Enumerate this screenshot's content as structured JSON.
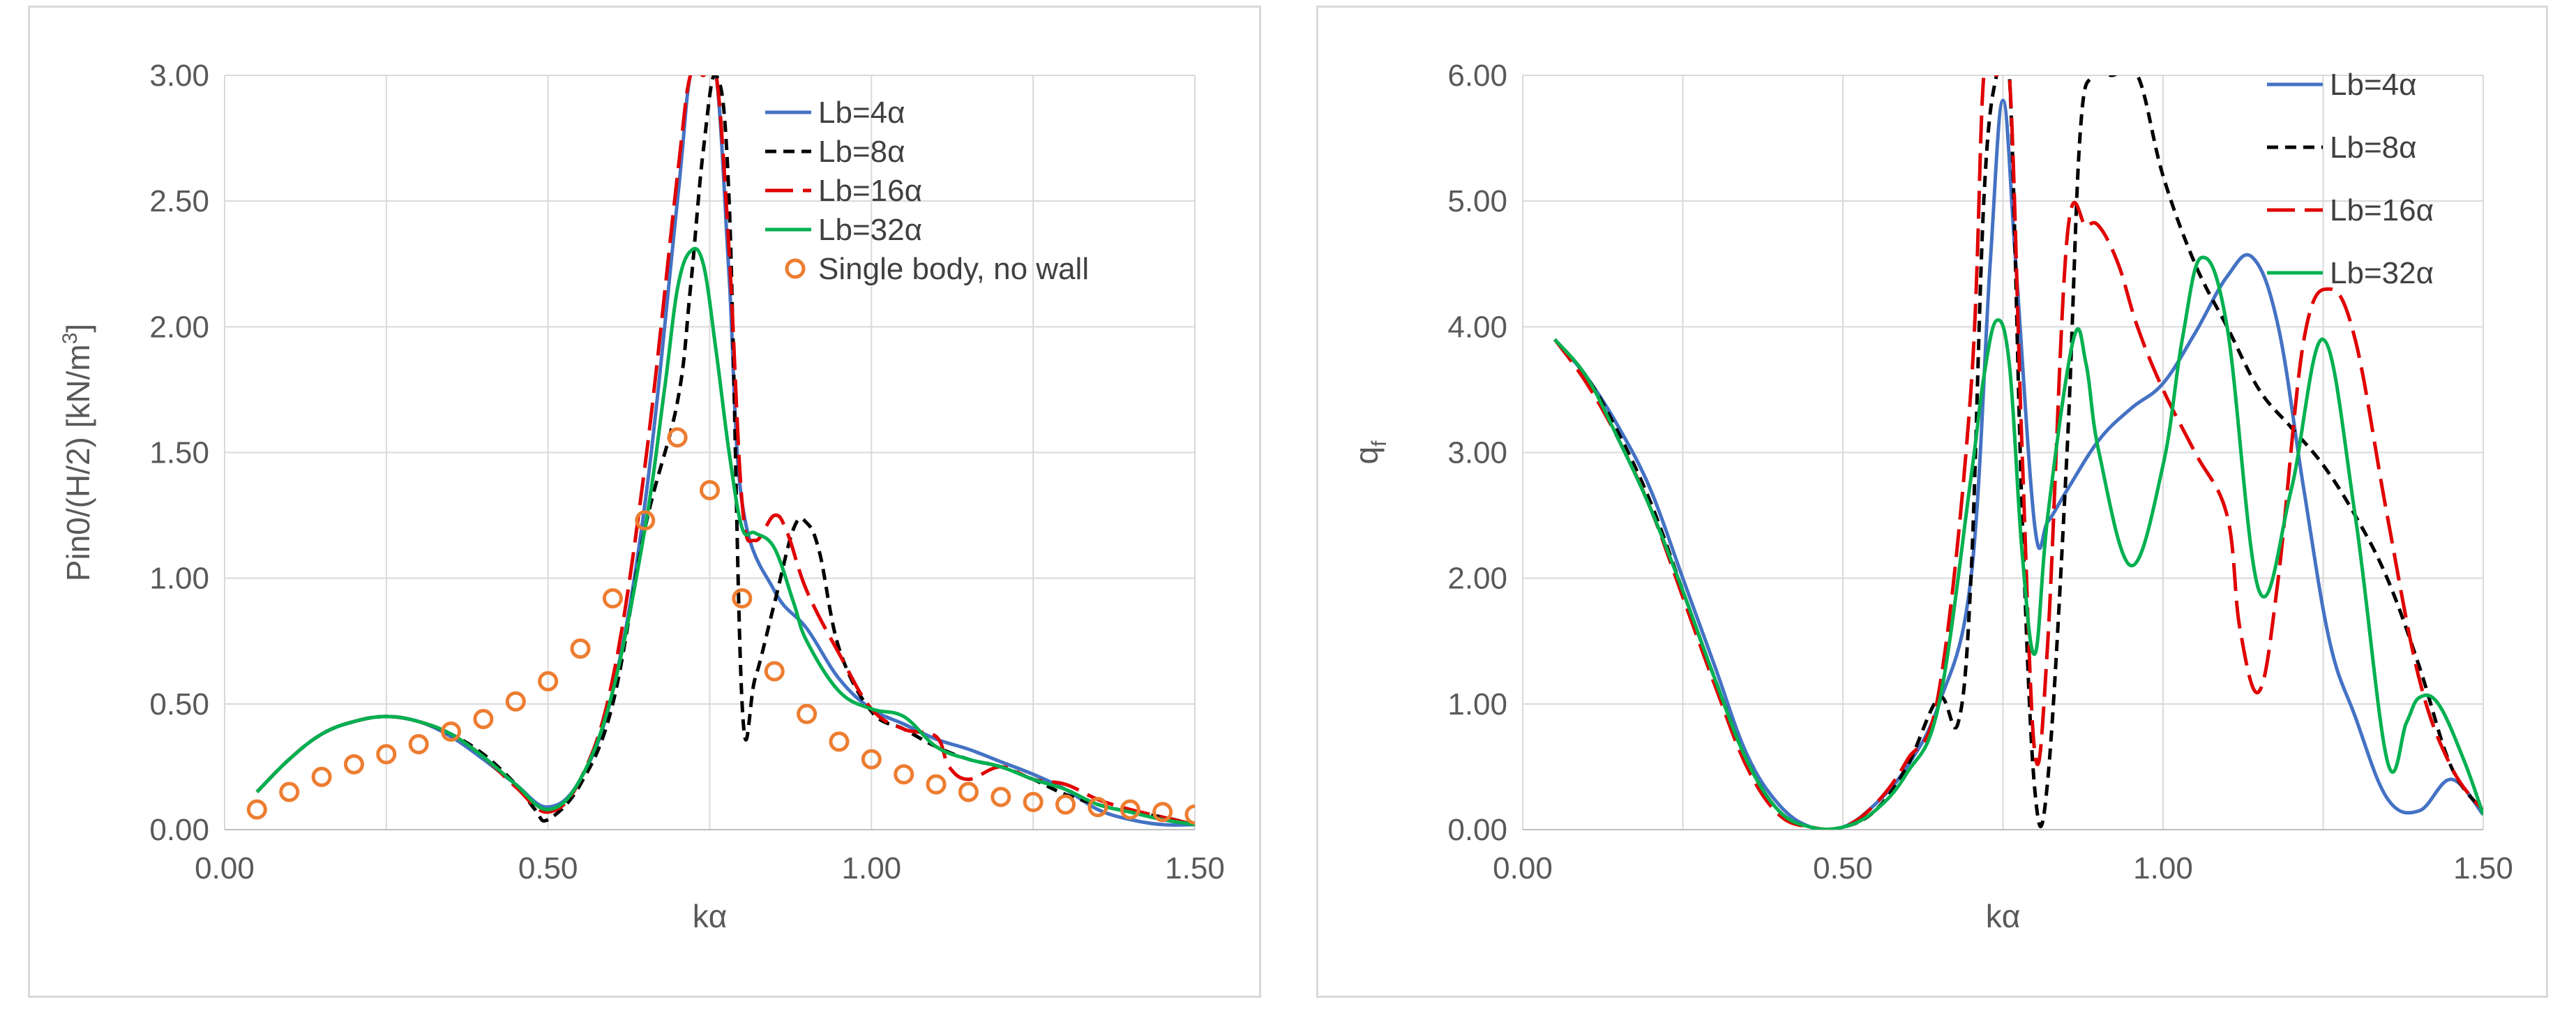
{
  "chart_data": [
    {
      "type": "line",
      "title": "",
      "xlabel": "kα",
      "ylabel_main": "Pin0/(H/2)   [kN/m",
      "ylabel_sup": "3",
      "ylabel_end": "]",
      "xlim": [
        0,
        1.5
      ],
      "ylim": [
        0,
        3
      ],
      "xticks": [
        0,
        0.5,
        1.0,
        1.5
      ],
      "xtick_labels": [
        "0.00",
        "0.50",
        "1.00",
        "1.50"
      ],
      "yticks": [
        0,
        0.5,
        1.0,
        1.5,
        2.0,
        2.5,
        3.0
      ],
      "ytick_labels": [
        "0.00",
        "0.50",
        "1.00",
        "1.50",
        "2.00",
        "2.50",
        "3.00"
      ],
      "grid": true,
      "legend_position": "top-right",
      "series": [
        {
          "name": "Lb=4α",
          "color": "#4472c4",
          "style": "solid",
          "x": [
            0.05,
            0.1,
            0.15,
            0.2,
            0.25,
            0.3,
            0.35,
            0.4,
            0.45,
            0.5,
            0.55,
            0.6,
            0.65,
            0.7,
            0.72,
            0.74,
            0.76,
            0.78,
            0.8,
            0.85,
            0.9,
            0.95,
            1.0,
            1.05,
            1.1,
            1.15,
            1.2,
            1.25,
            1.3,
            1.35,
            1.4,
            1.45,
            1.5
          ],
          "y": [
            0.15,
            0.28,
            0.38,
            0.43,
            0.45,
            0.43,
            0.37,
            0.28,
            0.18,
            0.09,
            0.2,
            0.55,
            1.3,
            2.5,
            3.0,
            3.0,
            3.0,
            2.2,
            1.3,
            0.95,
            0.8,
            0.6,
            0.48,
            0.42,
            0.36,
            0.32,
            0.27,
            0.22,
            0.16,
            0.08,
            0.04,
            0.02,
            0.02
          ]
        },
        {
          "name": "Lb=8α",
          "color": "#000000",
          "style": "dash",
          "x": [
            0.05,
            0.1,
            0.15,
            0.2,
            0.25,
            0.3,
            0.35,
            0.4,
            0.45,
            0.48,
            0.5,
            0.55,
            0.6,
            0.65,
            0.7,
            0.72,
            0.74,
            0.76,
            0.78,
            0.8,
            0.82,
            0.85,
            0.88,
            0.9,
            0.92,
            0.95,
            1.0,
            1.05,
            1.1,
            1.15,
            1.2,
            1.25,
            1.3,
            1.35,
            1.4,
            1.45,
            1.5
          ],
          "y": [
            0.15,
            0.28,
            0.38,
            0.43,
            0.45,
            0.43,
            0.38,
            0.3,
            0.18,
            0.08,
            0.04,
            0.18,
            0.5,
            1.2,
            1.7,
            2.15,
            2.7,
            3.0,
            2.5,
            0.5,
            0.6,
            0.9,
            1.2,
            1.22,
            1.1,
            0.72,
            0.47,
            0.4,
            0.33,
            0.28,
            0.25,
            0.2,
            0.14,
            0.1,
            0.07,
            0.05,
            0.02
          ]
        },
        {
          "name": "Lb=16α",
          "color": "#e00000",
          "style": "longdash",
          "x": [
            0.05,
            0.1,
            0.15,
            0.2,
            0.25,
            0.3,
            0.35,
            0.4,
            0.45,
            0.5,
            0.55,
            0.6,
            0.65,
            0.7,
            0.72,
            0.74,
            0.76,
            0.78,
            0.8,
            0.82,
            0.85,
            0.87,
            0.9,
            0.95,
            1.0,
            1.05,
            1.1,
            1.12,
            1.15,
            1.2,
            1.25,
            1.3,
            1.35,
            1.4,
            1.45,
            1.5
          ],
          "y": [
            0.15,
            0.28,
            0.38,
            0.43,
            0.45,
            0.43,
            0.38,
            0.29,
            0.17,
            0.07,
            0.2,
            0.6,
            1.45,
            2.6,
            3.0,
            3.0,
            3.0,
            2.3,
            1.3,
            1.15,
            1.25,
            1.18,
            0.95,
            0.7,
            0.48,
            0.4,
            0.37,
            0.25,
            0.2,
            0.25,
            0.2,
            0.18,
            0.12,
            0.08,
            0.05,
            0.02
          ]
        },
        {
          "name": "Lb=32α",
          "color": "#00b050",
          "style": "solid",
          "x": [
            0.05,
            0.1,
            0.15,
            0.2,
            0.25,
            0.3,
            0.35,
            0.4,
            0.45,
            0.5,
            0.55,
            0.6,
            0.65,
            0.68,
            0.7,
            0.72,
            0.74,
            0.76,
            0.78,
            0.8,
            0.82,
            0.85,
            0.88,
            0.9,
            0.95,
            1.0,
            1.05,
            1.1,
            1.15,
            1.2,
            1.25,
            1.3,
            1.35,
            1.4,
            1.45,
            1.5
          ],
          "y": [
            0.15,
            0.28,
            0.38,
            0.43,
            0.45,
            0.43,
            0.38,
            0.29,
            0.18,
            0.08,
            0.2,
            0.55,
            1.2,
            1.75,
            2.15,
            2.3,
            2.25,
            1.9,
            1.5,
            1.2,
            1.18,
            1.12,
            0.9,
            0.75,
            0.55,
            0.48,
            0.45,
            0.33,
            0.28,
            0.25,
            0.2,
            0.16,
            0.1,
            0.07,
            0.04,
            0.02
          ]
        },
        {
          "name": "Single body, no wall",
          "color": "#ed7d31",
          "style": "circle",
          "x": [
            0.05,
            0.1,
            0.15,
            0.2,
            0.25,
            0.3,
            0.35,
            0.4,
            0.45,
            0.5,
            0.55,
            0.6,
            0.65,
            0.7,
            0.75,
            0.8,
            0.85,
            0.9,
            0.95,
            1.0,
            1.05,
            1.1,
            1.15,
            1.2,
            1.25,
            1.3,
            1.35,
            1.4,
            1.45,
            1.5
          ],
          "y": [
            0.08,
            0.15,
            0.21,
            0.26,
            0.3,
            0.34,
            0.39,
            0.44,
            0.51,
            0.59,
            0.72,
            0.92,
            1.23,
            1.56,
            1.35,
            0.92,
            0.63,
            0.46,
            0.35,
            0.28,
            0.22,
            0.18,
            0.15,
            0.13,
            0.11,
            0.1,
            0.09,
            0.08,
            0.07,
            0.06
          ]
        }
      ]
    },
    {
      "type": "line",
      "title": "",
      "xlabel": "kα",
      "ylabel_main": "q",
      "ylabel_sub": "f",
      "xlim": [
        0,
        1.5
      ],
      "ylim": [
        0,
        6
      ],
      "xticks": [
        0,
        0.5,
        1.0,
        1.5
      ],
      "xtick_labels": [
        "0.00",
        "0.50",
        "1.00",
        "1.50"
      ],
      "yticks": [
        0,
        1,
        2,
        3,
        4,
        5,
        6
      ],
      "ytick_labels": [
        "0.00",
        "1.00",
        "2.00",
        "3.00",
        "4.00",
        "5.00",
        "6.00"
      ],
      "grid": true,
      "legend_position": "top-right",
      "series": [
        {
          "name": "Lb=4α",
          "color": "#4472c4",
          "style": "solid",
          "x": [
            0.05,
            0.1,
            0.15,
            0.2,
            0.25,
            0.3,
            0.35,
            0.4,
            0.45,
            0.5,
            0.55,
            0.6,
            0.65,
            0.7,
            0.73,
            0.75,
            0.77,
            0.8,
            0.82,
            0.85,
            0.9,
            0.95,
            1.0,
            1.05,
            1.1,
            1.14,
            1.18,
            1.22,
            1.26,
            1.3,
            1.35,
            1.4,
            1.45,
            1.5
          ],
          "y": [
            3.9,
            3.6,
            3.2,
            2.7,
            2.0,
            1.3,
            0.6,
            0.2,
            0.02,
            0.02,
            0.2,
            0.5,
            1.0,
            2.0,
            4.5,
            5.8,
            4.5,
            2.4,
            2.45,
            2.7,
            3.1,
            3.35,
            3.55,
            3.95,
            4.4,
            4.55,
            4.0,
            2.7,
            1.5,
            0.9,
            0.25,
            0.15,
            0.4,
            0.12
          ]
        },
        {
          "name": "Lb=8α",
          "color": "#000000",
          "style": "dash",
          "x": [
            0.05,
            0.1,
            0.15,
            0.2,
            0.25,
            0.3,
            0.35,
            0.4,
            0.45,
            0.5,
            0.55,
            0.6,
            0.65,
            0.68,
            0.7,
            0.72,
            0.74,
            0.76,
            0.78,
            0.8,
            0.82,
            0.85,
            0.87,
            0.89,
            0.92,
            0.96,
            1.0,
            1.05,
            1.1,
            1.15,
            1.2,
            1.25,
            1.3,
            1.35,
            1.4,
            1.45,
            1.5
          ],
          "y": [
            3.9,
            3.6,
            3.15,
            2.6,
            1.9,
            1.2,
            0.55,
            0.15,
            0.02,
            0.02,
            0.15,
            0.5,
            1.05,
            0.85,
            2.0,
            5.0,
            6.0,
            6.0,
            2.5,
            0.3,
            0.4,
            3.0,
            5.5,
            6.0,
            6.0,
            6.0,
            5.2,
            4.5,
            4.0,
            3.5,
            3.2,
            2.9,
            2.5,
            2.0,
            1.3,
            0.5,
            0.15
          ]
        },
        {
          "name": "Lb=16α",
          "color": "#e00000",
          "style": "longdash",
          "x": [
            0.05,
            0.1,
            0.15,
            0.2,
            0.25,
            0.3,
            0.35,
            0.4,
            0.45,
            0.5,
            0.55,
            0.6,
            0.65,
            0.7,
            0.72,
            0.74,
            0.76,
            0.78,
            0.8,
            0.82,
            0.85,
            0.88,
            0.9,
            0.93,
            0.96,
            1.0,
            1.05,
            1.1,
            1.12,
            1.15,
            1.18,
            1.22,
            1.26,
            1.3,
            1.35,
            1.4,
            1.45,
            1.5
          ],
          "y": [
            3.9,
            3.55,
            3.1,
            2.55,
            1.85,
            1.15,
            0.5,
            0.12,
            0.02,
            0.02,
            0.2,
            0.55,
            1.1,
            3.5,
            6.0,
            6.0,
            6.0,
            3.0,
            0.6,
            1.5,
            4.7,
            4.8,
            4.8,
            4.5,
            4.0,
            3.5,
            3.0,
            2.5,
            1.6,
            1.1,
            2.0,
            3.9,
            4.3,
            3.9,
            2.5,
            1.2,
            0.5,
            0.15
          ]
        },
        {
          "name": "Lb=32α",
          "color": "#00b050",
          "style": "solid",
          "x": [
            0.05,
            0.1,
            0.15,
            0.2,
            0.25,
            0.3,
            0.35,
            0.4,
            0.45,
            0.5,
            0.55,
            0.6,
            0.65,
            0.7,
            0.72,
            0.74,
            0.76,
            0.78,
            0.8,
            0.82,
            0.86,
            0.88,
            0.9,
            0.95,
            1.0,
            1.03,
            1.06,
            1.1,
            1.15,
            1.2,
            1.25,
            1.3,
            1.35,
            1.38,
            1.4,
            1.43,
            1.47,
            1.5
          ],
          "y": [
            3.9,
            3.6,
            3.1,
            2.55,
            1.9,
            1.2,
            0.55,
            0.15,
            0.02,
            0.02,
            0.15,
            0.45,
            1.0,
            2.8,
            3.6,
            4.05,
            3.7,
            2.2,
            1.4,
            2.5,
            3.9,
            3.7,
            3.0,
            2.1,
            2.9,
            3.9,
            4.55,
            4.0,
            1.9,
            2.7,
            3.9,
            2.5,
            0.55,
            0.85,
            1.05,
            1.0,
            0.55,
            0.12
          ]
        }
      ]
    }
  ]
}
